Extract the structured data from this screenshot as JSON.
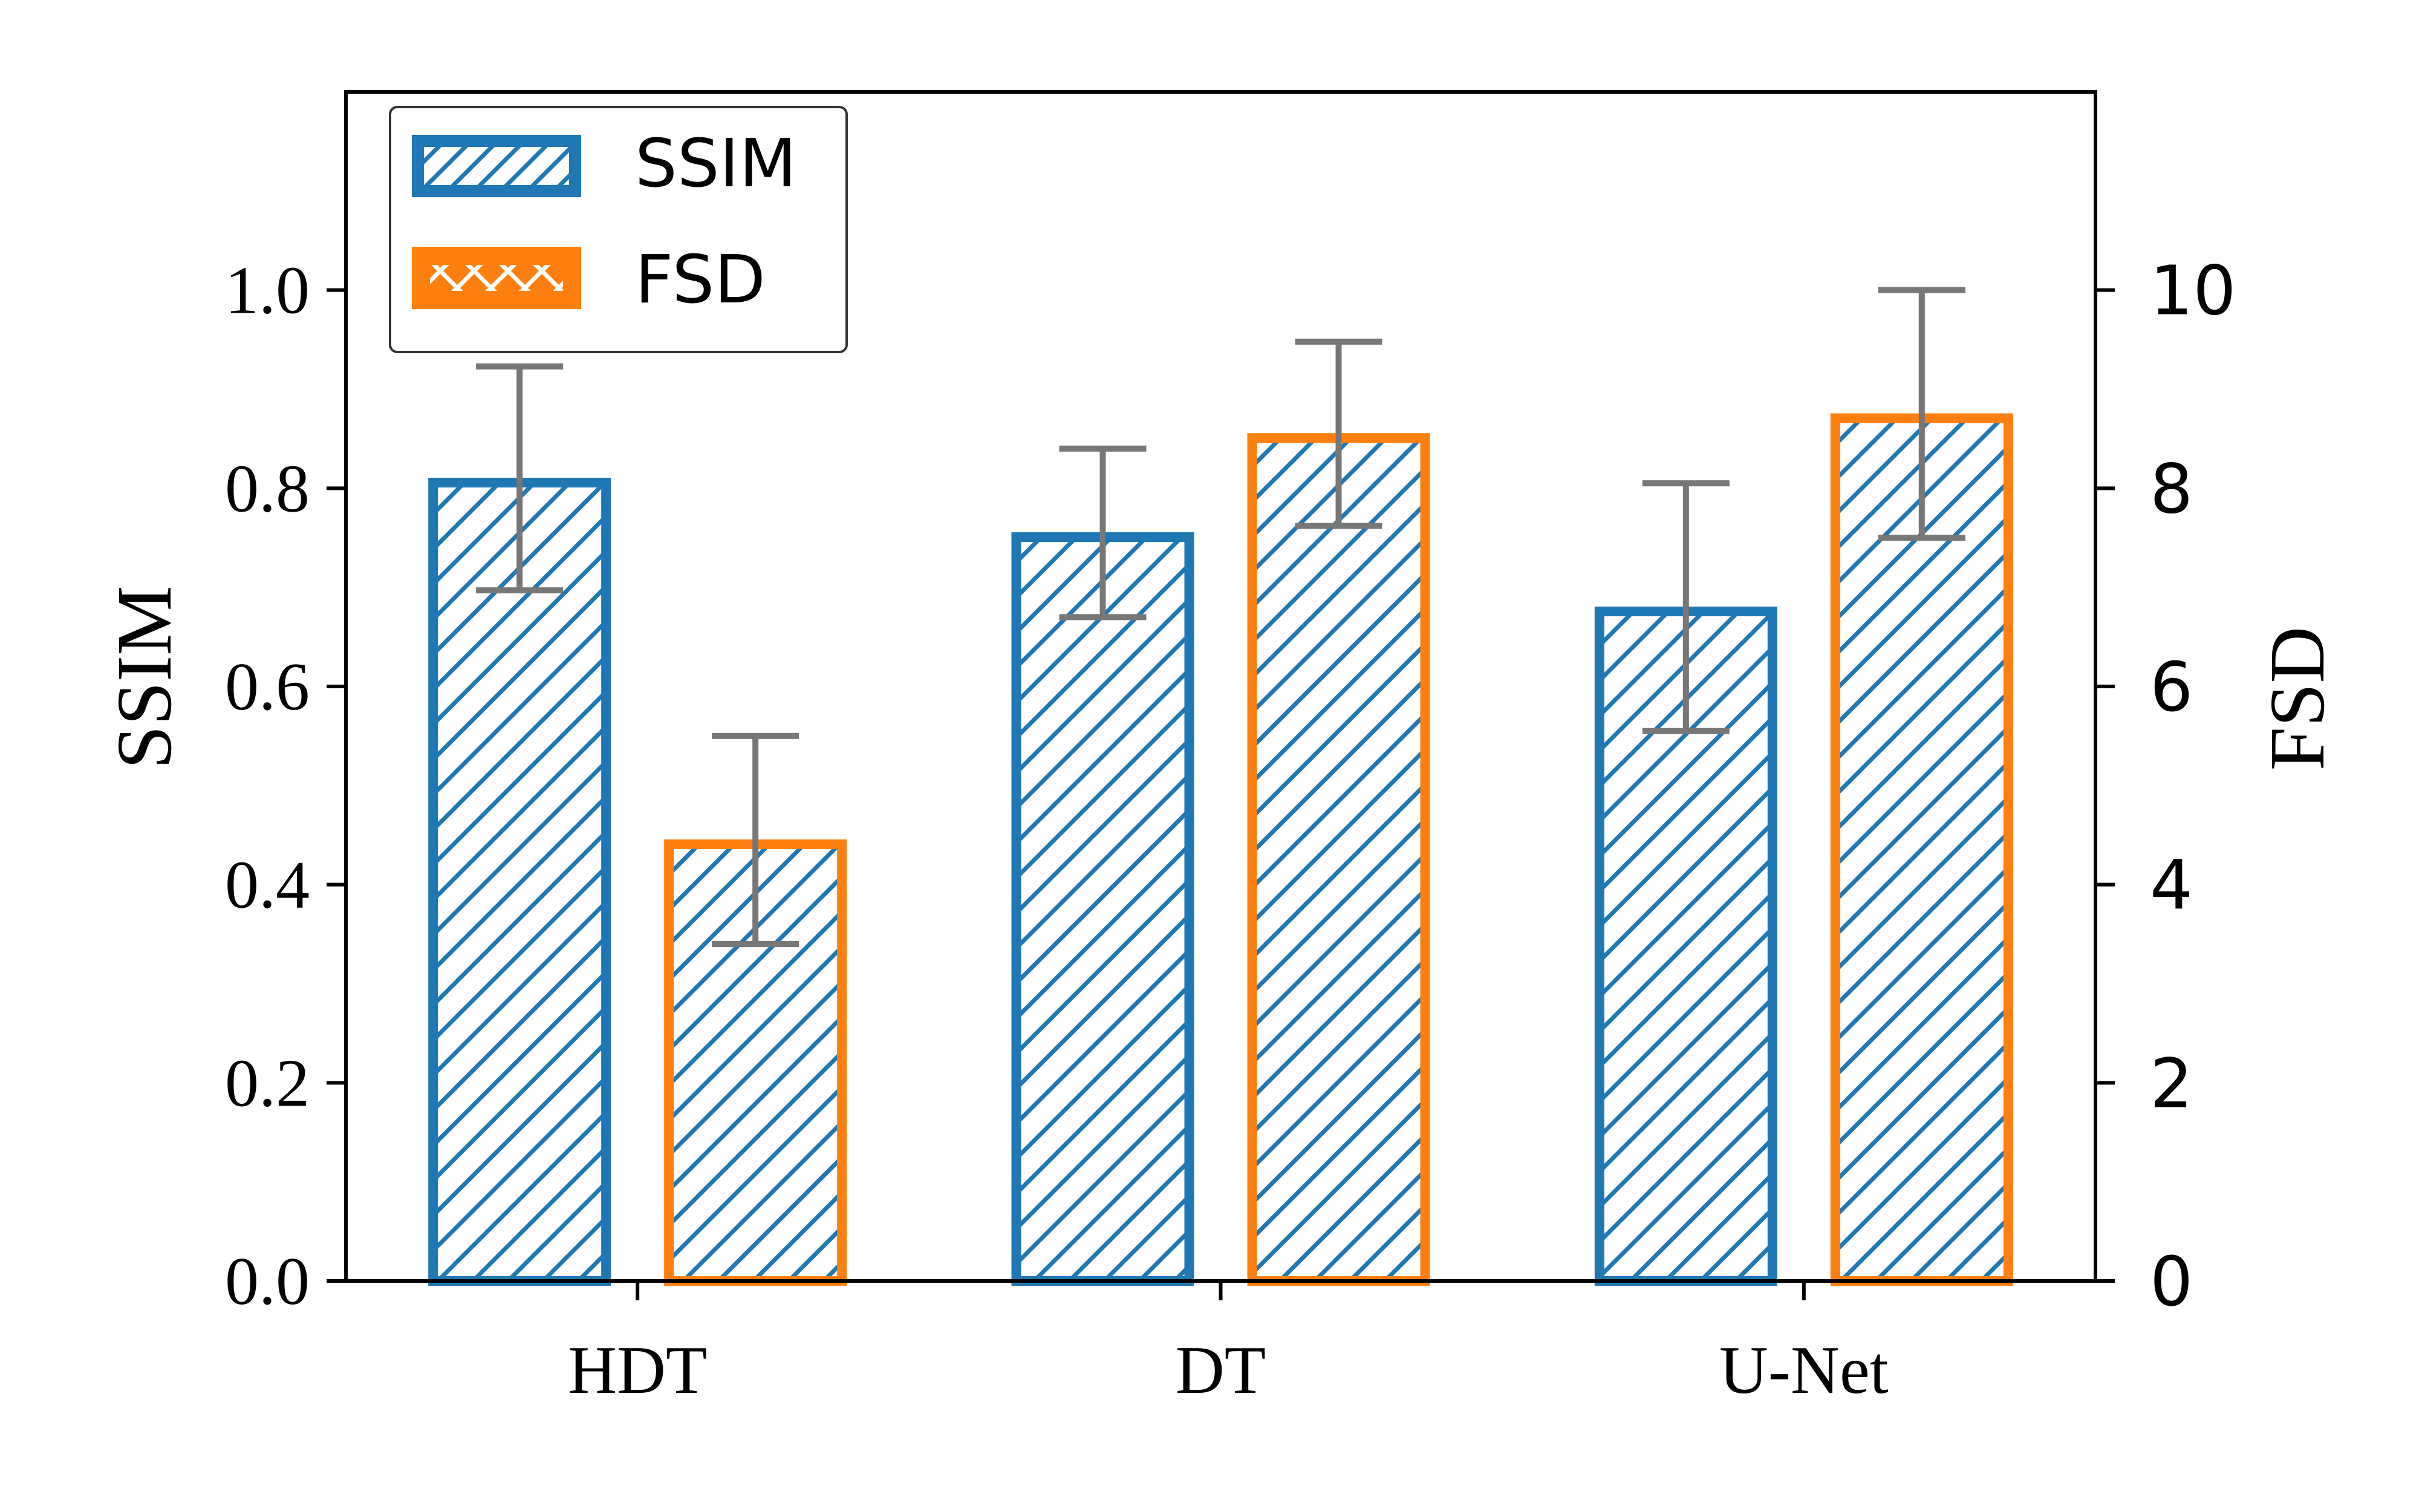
{
  "chart_data": {
    "type": "bar",
    "categories": [
      "HDT",
      "DT",
      "U-Net"
    ],
    "series": [
      {
        "name": "SSIM",
        "axis": "left",
        "values": [
          0.81,
          0.755,
          0.68
        ],
        "error": [
          0.113,
          0.085,
          0.125
        ],
        "color": "#1f77b4",
        "hatch": "diagonal"
      },
      {
        "name": "FSD",
        "axis": "right",
        "values": [
          4.45,
          8.55,
          8.75
        ],
        "error": [
          1.05,
          0.93,
          1.25
        ],
        "color": "#ff7f0e",
        "hatch": "diagonal"
      }
    ],
    "title": "",
    "xlabel": "",
    "ylabel": "SSIM",
    "ylabel_right": "FSD",
    "ylim": [
      0,
      1.2
    ],
    "ylim_right": [
      0,
      12
    ],
    "yticks": [
      "0.0",
      "0.2",
      "0.4",
      "0.6",
      "0.8",
      "1.0"
    ],
    "yticks_right": [
      "0",
      "2",
      "4",
      "6",
      "8",
      "10"
    ],
    "grid": false,
    "legend_position": "top-left",
    "errorbar_color": "#777777",
    "hatch_color": "#1f77b4"
  }
}
